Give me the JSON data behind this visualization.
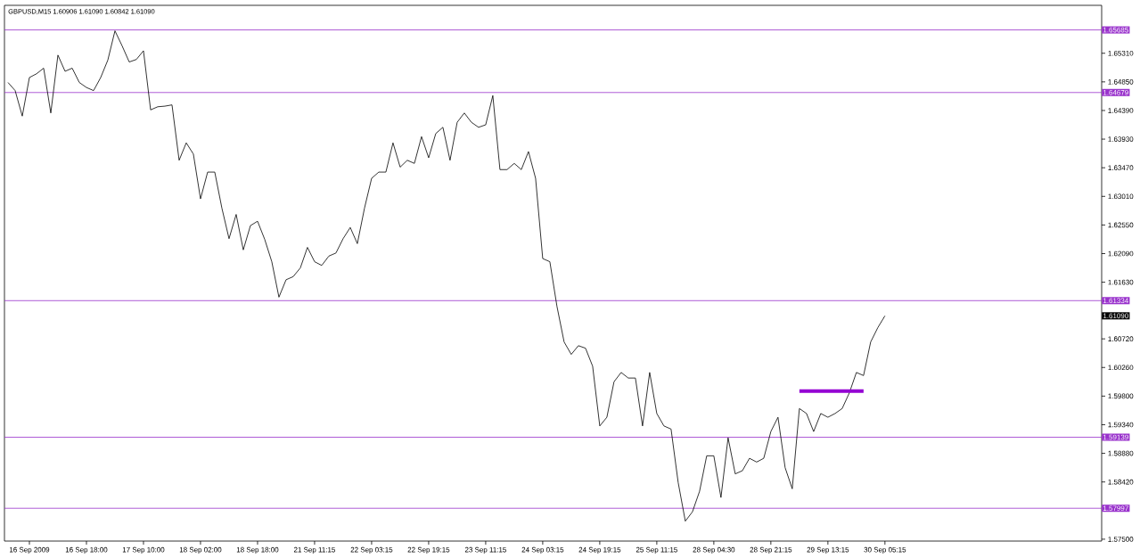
{
  "chart_data": {
    "type": "line",
    "title": "GBPUSD,M15  1.60906 1.61090 1.60842 1.61090",
    "ylim": [
      1.5747,
      1.6608
    ],
    "categories": [
      null,
      null,
      null,
      "16 Sep 2009",
      null,
      null,
      null,
      null,
      null,
      null,
      null,
      "16 Sep 18:00",
      null,
      null,
      null,
      null,
      null,
      null,
      null,
      "17 Sep 10:00",
      null,
      null,
      null,
      null,
      null,
      null,
      null,
      "18 Sep 02:00",
      null,
      null,
      null,
      null,
      null,
      null,
      null,
      "18 Sep 18:00",
      null,
      null,
      null,
      null,
      null,
      null,
      null,
      "21 Sep 11:15",
      null,
      null,
      null,
      null,
      null,
      null,
      null,
      "22 Sep 03:15",
      null,
      null,
      null,
      null,
      null,
      null,
      null,
      "22 Sep 19:15",
      null,
      null,
      null,
      null,
      null,
      null,
      null,
      "23 Sep 11:15",
      null,
      null,
      null,
      null,
      null,
      null,
      null,
      "24 Sep 03:15",
      null,
      null,
      null,
      null,
      null,
      null,
      null,
      "24 Sep 19:15",
      null,
      null,
      null,
      null,
      null,
      null,
      null,
      "25 Sep 11:15",
      null,
      null,
      null,
      null,
      null,
      null,
      null,
      "28 Sep 04:30",
      null,
      null,
      null,
      null,
      null,
      null,
      null,
      "28 Sep 21:15",
      null,
      null,
      null,
      null,
      null,
      null,
      null,
      "29 Sep 13:15",
      null,
      null,
      null,
      null,
      null,
      null,
      null,
      "30 Sep 05:15"
    ],
    "yticks": [
      {
        "value": 1.575,
        "label": "1.57500"
      },
      {
        "value": 1.5842,
        "label": "1.58420"
      },
      {
        "value": 1.5888,
        "label": "1.58880"
      },
      {
        "value": 1.5934,
        "label": "1.59340"
      },
      {
        "value": 1.598,
        "label": "1.59800"
      },
      {
        "value": 1.6026,
        "label": "1.60260"
      },
      {
        "value": 1.6072,
        "label": "1.60720"
      },
      {
        "value": 1.6163,
        "label": "1.61630"
      },
      {
        "value": 1.6209,
        "label": "1.62090"
      },
      {
        "value": 1.6255,
        "label": "1.62550"
      },
      {
        "value": 1.6301,
        "label": "1.63010"
      },
      {
        "value": 1.6347,
        "label": "1.63470"
      },
      {
        "value": 1.6393,
        "label": "1.63930"
      },
      {
        "value": 1.6439,
        "label": "1.64390"
      },
      {
        "value": 1.6485,
        "label": "1.64850"
      },
      {
        "value": 1.6531,
        "label": "1.65310"
      }
    ],
    "series": [
      {
        "color": "#000000",
        "values": [
          1.6484,
          1.6471,
          1.643,
          1.6492,
          1.6498,
          1.6507,
          1.6435,
          1.6528,
          1.6502,
          1.6507,
          1.6484,
          1.6476,
          1.6471,
          1.6492,
          1.652,
          1.6567,
          1.6543,
          1.6517,
          1.6521,
          1.6535,
          1.644,
          1.6445,
          1.6446,
          1.6448,
          1.6359,
          1.6387,
          1.6369,
          1.6297,
          1.634,
          1.634,
          1.6282,
          1.6233,
          1.6272,
          1.6215,
          1.6254,
          1.6261,
          1.6232,
          1.6196,
          1.6139,
          1.6167,
          1.6172,
          1.6186,
          1.6219,
          1.6196,
          1.619,
          1.6205,
          1.621,
          1.6233,
          1.6251,
          1.6225,
          1.6282,
          1.633,
          1.634,
          1.634,
          1.6387,
          1.6348,
          1.6359,
          1.6354,
          1.6397,
          1.6363,
          1.6402,
          1.6412,
          1.6359,
          1.642,
          1.6435,
          1.642,
          1.6412,
          1.6416,
          1.6463,
          1.6344,
          1.6344,
          1.6354,
          1.6344,
          1.6373,
          1.633,
          1.6201,
          1.6196,
          1.6124,
          1.6067,
          1.6047,
          1.6061,
          1.6057,
          1.6028,
          1.5932,
          1.5946,
          1.6003,
          1.6018,
          1.6009,
          1.6009,
          1.5932,
          1.6018,
          1.5952,
          1.5932,
          1.5927,
          1.5841,
          1.5779,
          1.5794,
          1.5827,
          1.5884,
          1.5884,
          1.5817,
          1.5913,
          1.5855,
          1.586,
          1.588,
          1.5874,
          1.588,
          1.5923,
          1.5946,
          1.5865,
          1.5831,
          1.596,
          1.5952,
          1.5923,
          1.5952,
          1.5946,
          1.5952,
          1.596,
          1.5985,
          1.6018,
          1.6013,
          1.6067,
          1.609,
          1.6109
        ]
      },
      {
        "color": "#9400d3",
        "values": [
          null,
          null,
          null,
          null,
          null,
          null,
          null,
          null,
          null,
          null,
          null,
          null,
          null,
          null,
          null,
          null,
          null,
          null,
          null,
          null,
          null,
          null,
          null,
          null,
          null,
          null,
          null,
          null,
          null,
          null,
          null,
          null,
          null,
          null,
          null,
          null,
          null,
          null,
          null,
          null,
          null,
          null,
          null,
          null,
          null,
          null,
          null,
          null,
          null,
          null,
          null,
          null,
          null,
          null,
          null,
          null,
          null,
          null,
          null,
          null,
          null,
          null,
          null,
          null,
          null,
          null,
          null,
          null,
          null,
          null,
          null,
          null,
          null,
          null,
          null,
          null,
          null,
          null,
          null,
          null,
          null,
          null,
          null,
          null,
          null,
          null,
          null,
          null,
          null,
          null,
          null,
          null,
          null,
          null,
          null,
          null,
          null,
          null,
          null,
          null,
          null,
          null,
          null,
          null,
          null,
          null,
          null,
          null,
          null,
          null,
          null,
          1.5988,
          1.5988,
          1.5988,
          1.5988,
          1.5988,
          1.5988,
          1.5988,
          1.5988,
          1.5988,
          1.5988,
          null,
          null,
          null
        ]
      }
    ],
    "ref_lines": [
      {
        "axis": "y",
        "value": 1.65685,
        "label": "1.65685",
        "color": "#9932cc"
      },
      {
        "axis": "y",
        "value": 1.64679,
        "label": "1.64679",
        "color": "#9932cc"
      },
      {
        "axis": "y",
        "value": 1.61334,
        "label": "1.61334",
        "color": "#9932cc"
      },
      {
        "axis": "y",
        "value": 1.59139,
        "label": "1.59139",
        "color": "#9932cc"
      },
      {
        "axis": "y",
        "value": 1.57997,
        "label": "1.57997",
        "color": "#9932cc"
      }
    ],
    "annotations": [
      "1.61090"
    ]
  }
}
